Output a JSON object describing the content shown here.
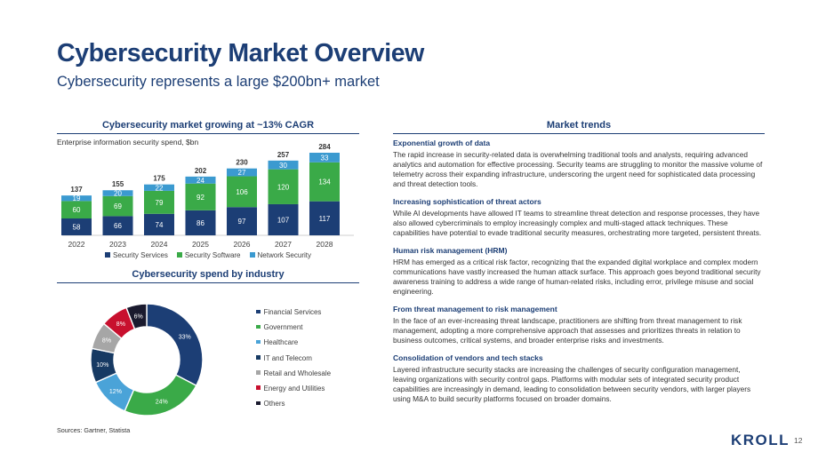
{
  "title": "Cybersecurity Market Overview",
  "subtitle": "Cybersecurity represents a large $200bn+ market",
  "left_top_title": "Cybersecurity market growing at ~13% CAGR",
  "chart_note": "Enterprise information security spend, $bn",
  "left_bottom_title": "Cybersecurity spend by industry",
  "right_title": "Market trends",
  "sources": "Sources: Gartner, Statista",
  "page_number": "12",
  "logo": "KROLL",
  "colors": {
    "navy": "#1c3e75",
    "green": "#3aaa48",
    "lightblue": "#3b9ad0",
    "darkblue": "#173a63",
    "grey": "#a6a6a6",
    "crimson": "#c8102e",
    "black": "#1a1a2e"
  },
  "chart_data": [
    {
      "type": "bar",
      "stacked": true,
      "title": "Cybersecurity market growing at ~13% CAGR",
      "ylabel": "Enterprise information security spend, $bn",
      "categories": [
        "2022",
        "2023",
        "2024",
        "2025",
        "2026",
        "2027",
        "2028"
      ],
      "series": [
        {
          "name": "Security Services",
          "color": "#1c3e75",
          "values": [
            58,
            66,
            74,
            86,
            97,
            107,
            117
          ]
        },
        {
          "name": "Security Software",
          "color": "#3aaa48",
          "values": [
            60,
            69,
            79,
            92,
            106,
            120,
            134
          ]
        },
        {
          "name": "Network Security",
          "color": "#3b9ad0",
          "values": [
            19,
            20,
            22,
            24,
            27,
            30,
            33
          ]
        }
      ],
      "totals": [
        137,
        155,
        175,
        202,
        230,
        257,
        284
      ],
      "ylim": [
        0,
        284
      ],
      "legend": "bottom",
      "grid": false
    },
    {
      "type": "pie",
      "donut": true,
      "title": "Cybersecurity spend by industry",
      "slices": [
        {
          "name": "Financial Services",
          "value": 33,
          "label": "33%",
          "color": "#1c3e75"
        },
        {
          "name": "Government",
          "value": 24,
          "label": "24%",
          "color": "#3aaa48"
        },
        {
          "name": "Healthcare",
          "value": 12,
          "label": "12%",
          "color": "#4aa3d8"
        },
        {
          "name": "IT and Telecom",
          "value": 10,
          "label": "10%",
          "color": "#173a63"
        },
        {
          "name": "Retail and Wholesale",
          "value": 8,
          "label": "8%",
          "color": "#a6a6a6"
        },
        {
          "name": "Energy and Utilities",
          "value": 8,
          "label": "8%",
          "color": "#c8102e"
        },
        {
          "name": "Others",
          "value": 6,
          "label": "6%",
          "color": "#1a1a2e"
        }
      ],
      "legend": "right"
    }
  ],
  "trends": [
    {
      "heading": "Exponential growth of data",
      "body": "The rapid increase in security-related data is overwhelming traditional tools and analysts, requiring advanced analytics and automation for effective processing. Security teams are struggling to monitor the massive volume of telemetry across their expanding infrastructure, underscoring the urgent need for sophisticated data processing and threat detection tools."
    },
    {
      "heading": "Increasing sophistication of threat actors",
      "body": "While AI developments have allowed IT teams to streamline threat detection and response processes, they have also allowed cybercriminals to employ increasingly complex and multi-staged attack techniques. These capabilities have potential to evade traditional security measures, orchestrating more targeted, persistent threats."
    },
    {
      "heading": "Human risk management (HRM)",
      "body": "HRM has emerged as a critical risk factor, recognizing that the expanded digital workplace and complex modern communications have vastly increased the human attack surface. This approach goes beyond traditional security awareness training to address a wide range of human-related risks, including error, privilege misuse and social engineering."
    },
    {
      "heading": "From threat management to risk management",
      "body": "In the face of an ever-increasing threat landscape, practitioners are shifting from threat management to risk management, adopting a more comprehensive approach that assesses and prioritizes threats in relation to business outcomes, critical systems, and broader enterprise risks and investments."
    },
    {
      "heading": "Consolidation of vendors and tech stacks",
      "body": "Layered infrastructure security stacks are increasing the challenges of security configuration management, leaving organizations with security control gaps. Platforms with modular sets of integrated security product capabilities are increasingly in demand, leading to consolidation between security vendors, with larger players using M&A to build security platforms focused on broader domains."
    }
  ]
}
